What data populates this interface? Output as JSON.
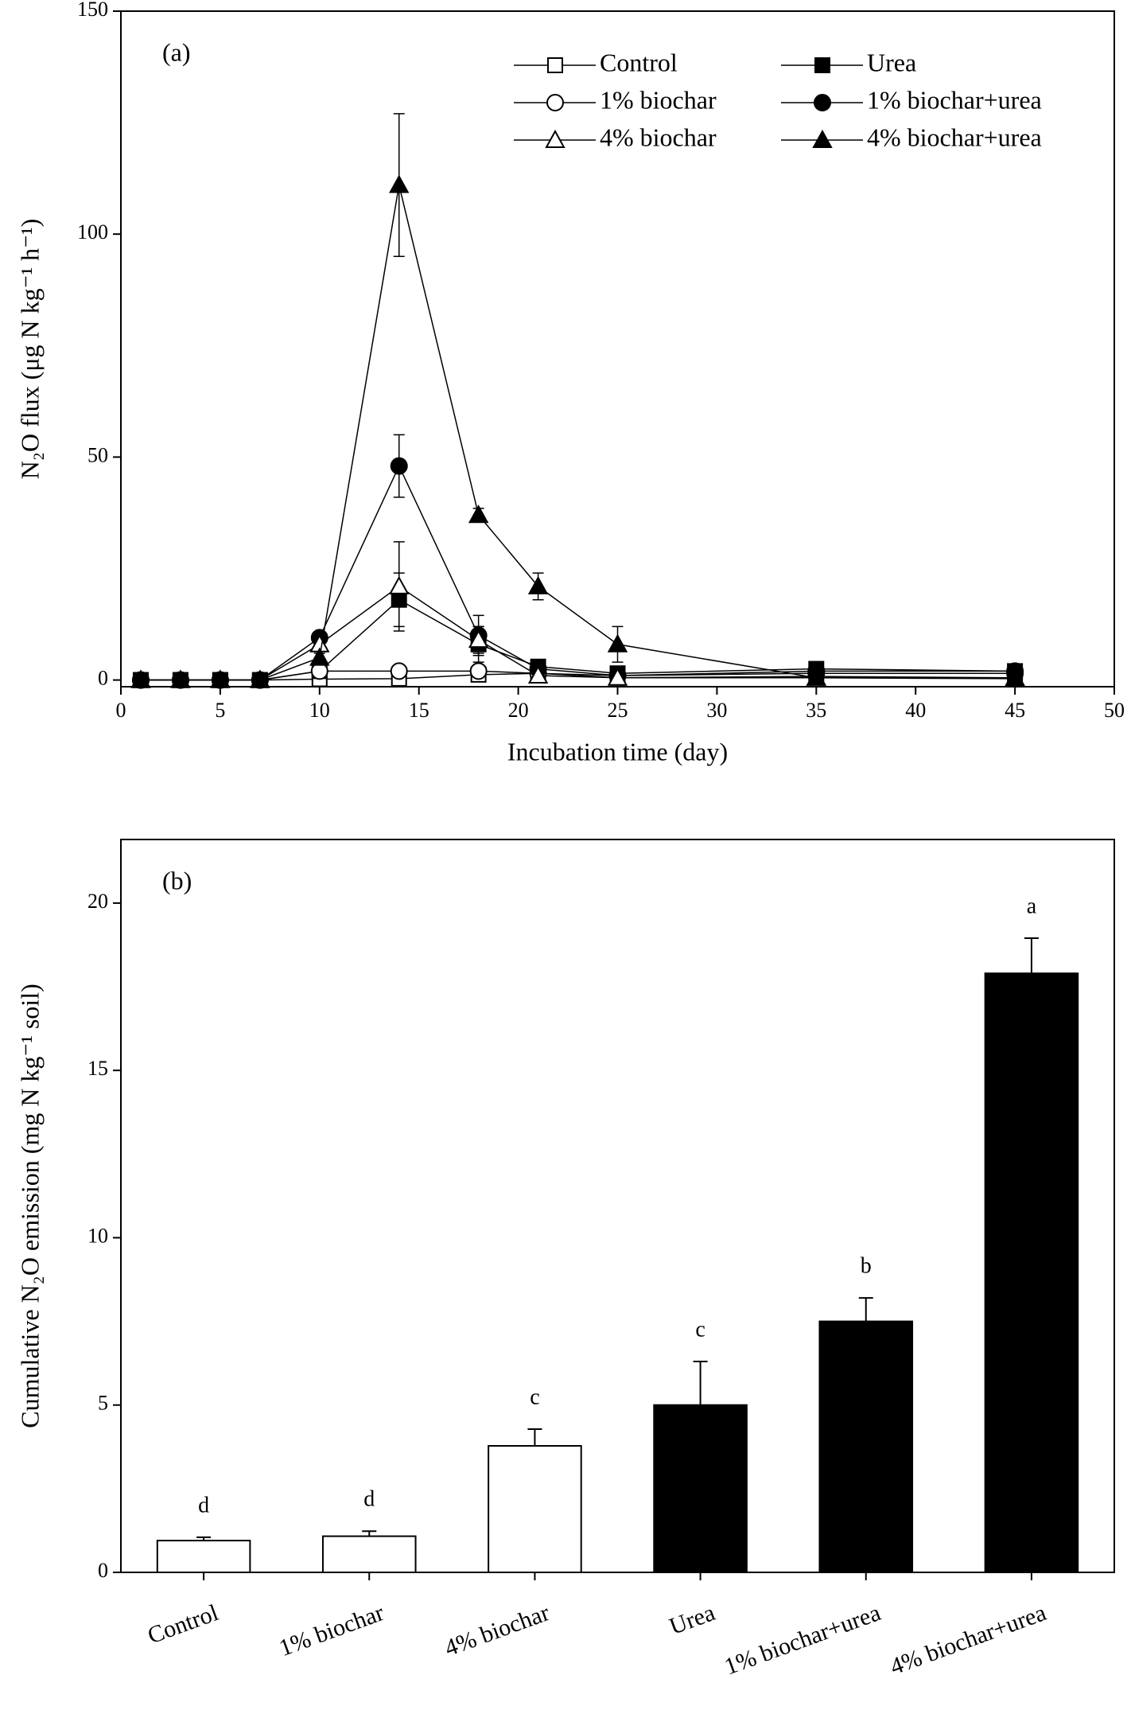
{
  "chart_data": [
    {
      "type": "line",
      "panel_label": "(a)",
      "xlabel": "Incubation time (day)",
      "ylabel": "N₂O flux (μg N kg⁻¹ h⁻¹)",
      "x": [
        1,
        3,
        5,
        7,
        10,
        14,
        18,
        21,
        25,
        35,
        45
      ],
      "xlim": [
        0,
        50
      ],
      "xticks": [
        0,
        5,
        10,
        15,
        20,
        25,
        30,
        35,
        40,
        45,
        50
      ],
      "ylim": [
        -1.5,
        150
      ],
      "yticks": [
        0,
        50,
        100,
        150
      ],
      "series": [
        {
          "name": "Control",
          "color": "#000000",
          "marker": "square",
          "filled": false,
          "values": [
            0,
            0,
            0,
            0,
            0.2,
            0.3,
            1.2,
            1.5,
            0.5,
            0.8,
            0.5
          ],
          "errors": [
            0.1,
            0.1,
            0.1,
            0.1,
            0.2,
            0.3,
            0.4,
            0.4,
            0.3,
            0.3,
            0.3
          ]
        },
        {
          "name": "Urea",
          "color": "#000000",
          "marker": "square",
          "filled": true,
          "values": [
            0,
            0,
            0,
            0,
            2,
            18,
            8,
            3,
            1.5,
            2.5,
            2
          ],
          "errors": [
            0.1,
            0.1,
            0.1,
            0.1,
            0.5,
            6,
            4,
            0.8,
            0.5,
            0.8,
            0.6
          ]
        },
        {
          "name": "1% biochar",
          "color": "#000000",
          "marker": "circle",
          "filled": false,
          "values": [
            0,
            0,
            0,
            0,
            2,
            2,
            2,
            1.5,
            1,
            1.5,
            1.5
          ],
          "errors": [
            0.1,
            0.1,
            0.1,
            0.1,
            0.4,
            1,
            0.5,
            0.4,
            0.3,
            0.4,
            0.4
          ]
        },
        {
          "name": "1% biochar+urea",
          "color": "#000000",
          "marker": "circle",
          "filled": true,
          "values": [
            0,
            0,
            0,
            0,
            9.5,
            48,
            10,
            2.5,
            1,
            2,
            2
          ],
          "errors": [
            0.1,
            0.1,
            0.1,
            0.1,
            1,
            7,
            4.5,
            0.8,
            0.4,
            0.6,
            0.6
          ]
        },
        {
          "name": "4% biochar",
          "color": "#000000",
          "marker": "triangle",
          "filled": false,
          "values": [
            0,
            0,
            0,
            0,
            8,
            21,
            9,
            1,
            0.5,
            0.5,
            0.5
          ],
          "errors": [
            0.1,
            0.1,
            0.1,
            0.1,
            1.5,
            10,
            3,
            0.4,
            0.3,
            0.3,
            0.3
          ]
        },
        {
          "name": "4% biochar+urea",
          "color": "#000000",
          "marker": "triangle",
          "filled": true,
          "values": [
            0,
            0,
            0,
            0,
            5,
            111,
            37,
            21,
            8,
            0.5,
            0.3
          ],
          "errors": [
            0.1,
            0.1,
            0.1,
            0.1,
            1,
            16,
            1.5,
            3,
            4,
            0.3,
            0.2
          ]
        }
      ]
    },
    {
      "type": "bar",
      "panel_label": "(b)",
      "ylabel": "Cumulative N₂O emission (mg N kg⁻¹ soil)",
      "categories": [
        "Control",
        "1% biochar",
        "4% biochar",
        "Urea",
        "1% biochar+urea",
        "4% biochar+urea"
      ],
      "values": [
        0.95,
        1.08,
        3.78,
        5.0,
        7.5,
        17.9
      ],
      "errors": [
        0.1,
        0.15,
        0.5,
        1.3,
        0.7,
        1.05
      ],
      "colors": [
        "#ffffff",
        "#ffffff",
        "#ffffff",
        "#000000",
        "#000000",
        "#000000"
      ],
      "annotations": [
        "d",
        "d",
        "c",
        "c",
        "b",
        "a"
      ],
      "ylim": [
        0,
        21.9
      ],
      "yticks": [
        0,
        5,
        10,
        15,
        20
      ]
    }
  ]
}
